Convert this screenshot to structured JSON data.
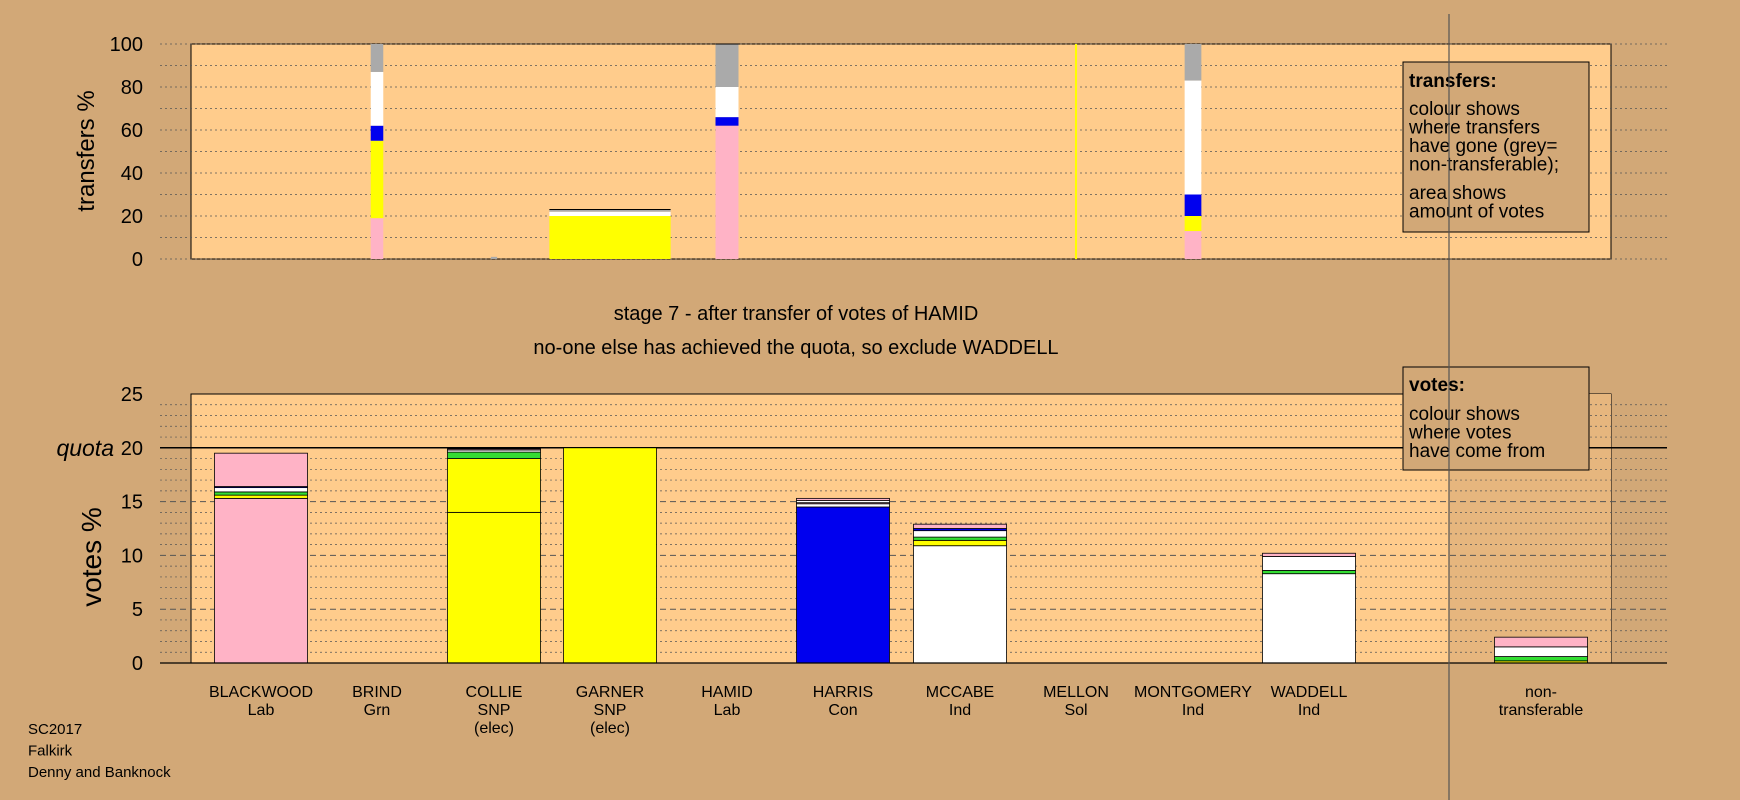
{
  "colors": {
    "background": "#d2a877",
    "plot_bg": "#ffcc8c",
    "Lab": "#ffb3c6",
    "Grn": "#33dd33",
    "SNP": "#ffff00",
    "Con": "#0000ee",
    "Ind": "#ffffff",
    "Sol": "#ff5555",
    "nontransferable": "#aaaaaa"
  },
  "footer": [
    "SC2017",
    "Falkirk",
    "Denny and Banknock"
  ],
  "stage_title": "stage 7 - after transfer of votes of HAMID",
  "stage_subtitle": "no-one else has achieved the quota, so exclude WADDELL",
  "transfers_legend": {
    "title": "transfers:",
    "lines1": [
      "colour shows",
      "where transfers",
      "have gone (grey=",
      "non-transferable);"
    ],
    "lines2": [
      "area shows",
      "amount of votes"
    ]
  },
  "votes_legend": {
    "title": "votes:",
    "lines": [
      "colour shows",
      "where votes",
      "have come from"
    ]
  },
  "quota_label": "quota",
  "chart_data": [
    {
      "type": "bar",
      "name": "transfers",
      "ylabel": "transfers %",
      "ylim": [
        0,
        100
      ],
      "yticks": [
        0,
        20,
        40,
        60,
        80,
        100
      ],
      "grid": "dotted every 10",
      "legend": "top-right",
      "bars": [
        {
          "candidate": "BRIND",
          "width_votes": 0.6,
          "segments": [
            {
              "party": "Lab",
              "value": 19
            },
            {
              "party": "SNP",
              "value": 36
            },
            {
              "party": "Con",
              "value": 7
            },
            {
              "party": "Ind",
              "value": 25
            },
            {
              "party": "nontransferable",
              "value": 13
            }
          ]
        },
        {
          "candidate": "COLLIE",
          "width_votes": 0.3,
          "segments": [
            {
              "party": "nontransferable",
              "value": 1
            }
          ]
        },
        {
          "candidate": "GARNER",
          "width_votes": 5.8,
          "segments": [
            {
              "party": "SNP",
              "value": 20
            },
            {
              "party": "Ind",
              "value": 2
            },
            {
              "party": "nontransferable",
              "value": 1
            }
          ]
        },
        {
          "candidate": "HAMID",
          "width_votes": 1.1,
          "segments": [
            {
              "party": "Lab",
              "value": 62
            },
            {
              "party": "Con",
              "value": 4
            },
            {
              "party": "Ind",
              "value": 14
            },
            {
              "party": "nontransferable",
              "value": 20
            }
          ]
        },
        {
          "candidate": "MELLON",
          "width_votes": 0.1,
          "segments": [
            {
              "party": "SNP",
              "value": 100
            }
          ]
        },
        {
          "candidate": "MONTGOMERY",
          "width_votes": 0.8,
          "segments": [
            {
              "party": "Lab",
              "value": 13
            },
            {
              "party": "SNP",
              "value": 7
            },
            {
              "party": "Con",
              "value": 10
            },
            {
              "party": "Ind",
              "value": 53
            },
            {
              "party": "nontransferable",
              "value": 17
            }
          ]
        }
      ]
    },
    {
      "type": "bar",
      "name": "votes",
      "ylabel": "votes %",
      "ylim": [
        0,
        25
      ],
      "yticks": [
        0,
        5,
        10,
        15,
        20,
        25
      ],
      "quota": 20,
      "legend": "top-right",
      "candidates": [
        {
          "name": "BLACKWOOD",
          "party": "Lab",
          "note": "",
          "segments": [
            {
              "party": "Lab",
              "value": 15.3
            },
            {
              "party": "SNP",
              "value": 0.3
            },
            {
              "party": "Grn",
              "value": 0.3
            },
            {
              "party": "Ind",
              "value": 0.4
            },
            {
              "party": "Con",
              "value": 0.1
            },
            {
              "party": "Lab",
              "value": 3.1
            }
          ]
        },
        {
          "name": "BRIND",
          "party": "Grn",
          "note": "",
          "segments": []
        },
        {
          "name": "COLLIE",
          "party": "SNP",
          "note": "(elec)",
          "segments": [
            {
              "party": "SNP",
              "value": 14.0
            },
            {
              "party": "SNP",
              "value": 5.0
            },
            {
              "party": "Grn",
              "value": 0.6
            },
            {
              "party": "Ind",
              "value": 0.2
            },
            {
              "party": "Lab",
              "value": 0.1
            }
          ]
        },
        {
          "name": "GARNER",
          "party": "SNP",
          "note": "(elec)",
          "segments": [
            {
              "party": "SNP",
              "value": 20.0
            }
          ]
        },
        {
          "name": "HAMID",
          "party": "Lab",
          "note": "",
          "segments": []
        },
        {
          "name": "HARRIS",
          "party": "Con",
          "note": "",
          "segments": [
            {
              "party": "Con",
              "value": 14.5
            },
            {
              "party": "Ind",
              "value": 0.3
            },
            {
              "party": "Lab",
              "value": 0.1
            },
            {
              "party": "Ind",
              "value": 0.2
            },
            {
              "party": "Lab",
              "value": 0.2
            }
          ]
        },
        {
          "name": "MCCABE",
          "party": "Ind",
          "note": "",
          "segments": [
            {
              "party": "Ind",
              "value": 10.9
            },
            {
              "party": "SNP",
              "value": 0.5
            },
            {
              "party": "Grn",
              "value": 0.3
            },
            {
              "party": "Ind",
              "value": 0.6
            },
            {
              "party": "Con",
              "value": 0.2
            },
            {
              "party": "Lab",
              "value": 0.4
            }
          ]
        },
        {
          "name": "MELLON",
          "party": "Sol",
          "note": "",
          "segments": []
        },
        {
          "name": "MONTGOMERY",
          "party": "Ind",
          "note": "",
          "segments": []
        },
        {
          "name": "WADDELL",
          "party": "Ind",
          "note": "",
          "segments": [
            {
              "party": "Ind",
              "value": 8.3
            },
            {
              "party": "Grn",
              "value": 0.3
            },
            {
              "party": "Ind",
              "value": 1.3
            },
            {
              "party": "Lab",
              "value": 0.3
            }
          ]
        }
      ],
      "nontransferable": {
        "name": "non-",
        "name2": "transferable",
        "segments": [
          {
            "party": "SNP",
            "value": 0.2
          },
          {
            "party": "Grn",
            "value": 0.4
          },
          {
            "party": "Ind",
            "value": 0.9
          },
          {
            "party": "Lab",
            "value": 0.9
          }
        ]
      }
    }
  ]
}
